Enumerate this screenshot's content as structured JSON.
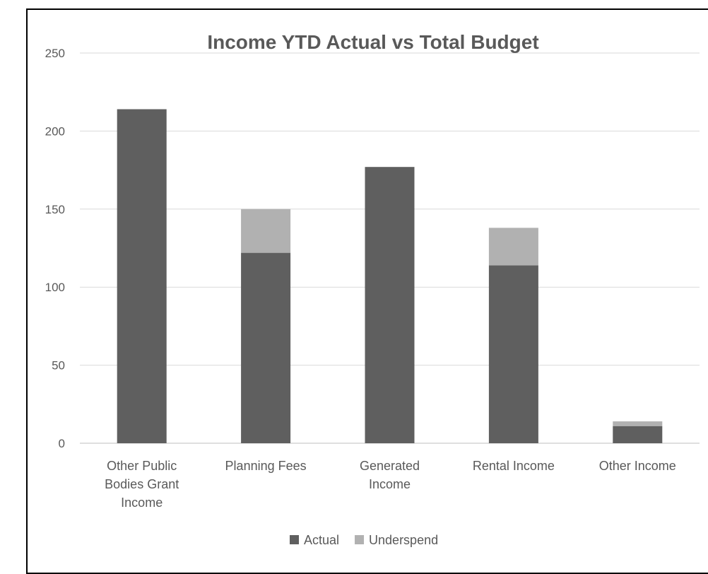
{
  "chart_data": {
    "type": "bar",
    "stacked": true,
    "title": "Income YTD Actual vs Total Budget",
    "categories": [
      [
        "Other Public",
        "Bodies Grant",
        "Income"
      ],
      [
        "Planning Fees"
      ],
      [
        "Generated",
        "Income"
      ],
      [
        "Rental Income"
      ],
      [
        "Other Income"
      ]
    ],
    "series": [
      {
        "name": "Actual",
        "color": "#5f5f5f",
        "values": [
          214,
          122,
          177,
          114,
          11
        ]
      },
      {
        "name": "Underspend",
        "color": "#b1b1b1",
        "values": [
          0,
          28,
          0,
          24,
          3
        ]
      }
    ],
    "ylim": [
      0,
      250
    ],
    "yticks": [
      0,
      50,
      100,
      150,
      200,
      250
    ],
    "grid": true,
    "legend_position": "bottom"
  }
}
